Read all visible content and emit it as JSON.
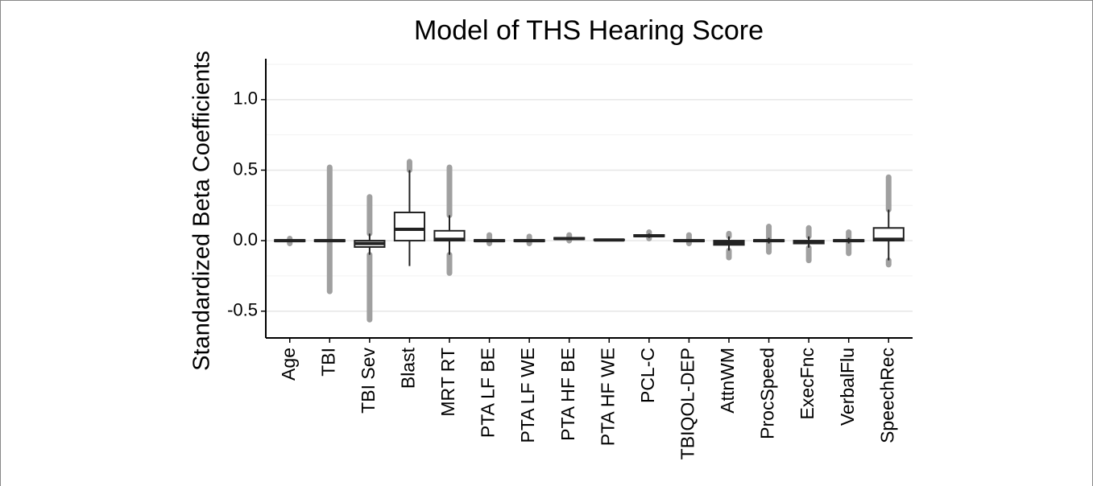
{
  "chart_data": {
    "type": "box",
    "title": "Model of THS Hearing Score",
    "ylabel": "Standardized Beta Coefficients",
    "categories": [
      "Age",
      "TBI",
      "TBI Sev",
      "Blast",
      "MRT RT",
      "PTA LF BE",
      "PTA LF WE",
      "PTA HF BE",
      "PTA HF WE",
      "PCL-C",
      "TBIQOL-DEP",
      "AttnWM",
      "ProcSpeed",
      "ExecFnc",
      "VerbalFlu",
      "SpeechRec"
    ],
    "boxes": [
      {
        "whisker_low": -0.01,
        "q1": -0.005,
        "median": 0,
        "q3": 0.005,
        "whisker_high": 0.01,
        "outlier_min": -0.02,
        "outlier_max": 0.015
      },
      {
        "whisker_low": -0.01,
        "q1": -0.005,
        "median": 0,
        "q3": 0.005,
        "whisker_high": 0.01,
        "outlier_min": -0.36,
        "outlier_max": 0.52
      },
      {
        "whisker_low": -0.1,
        "q1": -0.045,
        "median": -0.02,
        "q3": 0.0,
        "whisker_high": 0.05,
        "outlier_min": -0.56,
        "outlier_max": 0.31
      },
      {
        "whisker_low": -0.18,
        "q1": 0.0,
        "median": 0.08,
        "q3": 0.2,
        "whisker_high": 0.5,
        "outlier_min": null,
        "outlier_max": 0.56
      },
      {
        "whisker_low": -0.1,
        "q1": 0.0,
        "median": 0.01,
        "q3": 0.07,
        "whisker_high": 0.18,
        "outlier_min": -0.23,
        "outlier_max": 0.52
      },
      {
        "whisker_low": -0.01,
        "q1": -0.005,
        "median": 0,
        "q3": 0.005,
        "whisker_high": 0.01,
        "outlier_min": -0.02,
        "outlier_max": 0.04
      },
      {
        "whisker_low": -0.01,
        "q1": -0.005,
        "median": 0,
        "q3": 0.005,
        "whisker_high": 0.01,
        "outlier_min": -0.02,
        "outlier_max": 0.03
      },
      {
        "whisker_low": 0.005,
        "q1": 0.01,
        "median": 0.015,
        "q3": 0.02,
        "whisker_high": 0.025,
        "outlier_min": 0.0,
        "outlier_max": 0.04
      },
      {
        "whisker_low": 0.0,
        "q1": 0.003,
        "median": 0.005,
        "q3": 0.008,
        "whisker_high": 0.012,
        "outlier_min": null,
        "outlier_max": null
      },
      {
        "whisker_low": 0.02,
        "q1": 0.03,
        "median": 0.035,
        "q3": 0.04,
        "whisker_high": 0.05,
        "outlier_min": 0.015,
        "outlier_max": 0.06
      },
      {
        "whisker_low": -0.01,
        "q1": -0.005,
        "median": 0,
        "q3": 0.005,
        "whisker_high": 0.01,
        "outlier_min": -0.02,
        "outlier_max": 0.04
      },
      {
        "whisker_low": -0.07,
        "q1": -0.03,
        "median": -0.015,
        "q3": 0.0,
        "whisker_high": 0.03,
        "outlier_min": -0.12,
        "outlier_max": 0.05
      },
      {
        "whisker_low": -0.02,
        "q1": -0.005,
        "median": 0,
        "q3": 0.005,
        "whisker_high": 0.02,
        "outlier_min": -0.08,
        "outlier_max": 0.1
      },
      {
        "whisker_low": -0.05,
        "q1": -0.02,
        "median": -0.01,
        "q3": 0.0,
        "whisker_high": 0.03,
        "outlier_min": -0.14,
        "outlier_max": 0.09
      },
      {
        "whisker_low": -0.02,
        "q1": -0.005,
        "median": 0,
        "q3": 0.005,
        "whisker_high": 0.02,
        "outlier_min": -0.09,
        "outlier_max": 0.06
      },
      {
        "whisker_low": -0.14,
        "q1": 0.0,
        "median": 0.01,
        "q3": 0.09,
        "whisker_high": 0.22,
        "outlier_min": -0.17,
        "outlier_max": 0.45
      }
    ],
    "box_color": "#ffffff",
    "line_color": "#222222",
    "outlier_color": "#a0a0a0",
    "ylim": [
      -0.69,
      1.29
    ],
    "yticks": [
      {
        "value": -0.5,
        "label": "-0.5"
      },
      {
        "value": 0,
        "label": "0.0"
      },
      0.5,
      {
        "value": 1,
        "label": "1.0"
      }
    ],
    "minor_yticks": [
      -0.25,
      0.25,
      0.75,
      1.25
    ],
    "grid": true
  }
}
